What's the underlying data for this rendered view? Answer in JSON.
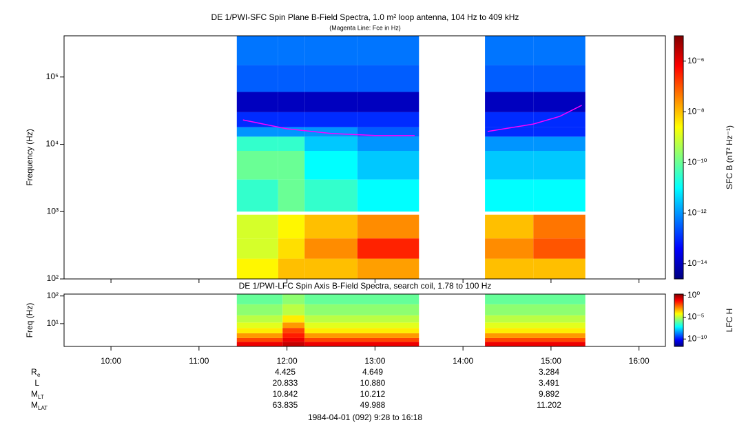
{
  "chart_data": [
    {
      "type": "heatmap",
      "title": "DE 1/PWI-SFC  Spin Plane B-Field Spectra, 1.0 m² loop antenna, 104 Hz to 409 kHz",
      "subtitle": "(Magenta Line: Fce in Hz)",
      "y_label": "Frequency (Hz)",
      "colorbar_label": "SFC B (nT² Hz⁻¹)",
      "xlim": [
        9.467,
        16.3
      ],
      "xticks": [
        10,
        11,
        12,
        13,
        14,
        15,
        16
      ],
      "ylim": [
        100,
        409000
      ],
      "y_log": true,
      "yticks": [
        {
          "value": 100,
          "label": "10²"
        },
        {
          "value": 1000,
          "label": "10³"
        },
        {
          "value": 10000,
          "label": "10⁴"
        },
        {
          "value": 100000,
          "label": "10⁵"
        }
      ],
      "zlim": [
        2.5e-15,
        1e-05
      ],
      "zticks": [
        {
          "value": 1e-14,
          "label": "10⁻¹⁴"
        },
        {
          "value": 1e-12,
          "label": "10⁻¹²"
        },
        {
          "value": 1e-10,
          "label": "10⁻¹⁰"
        },
        {
          "value": 1e-08,
          "label": "10⁻⁸"
        },
        {
          "value": 1e-06,
          "label": "10⁻⁶"
        }
      ],
      "x_edges": [
        11.43,
        11.9,
        12.2,
        12.8,
        13.5,
        14.25,
        14.8,
        15.39
      ],
      "y_edges": [
        100,
        200,
        400,
        900,
        1000,
        3000,
        8000,
        13000,
        18000,
        30000,
        60000,
        150000,
        409000
      ],
      "z": [
        [
          3e-09,
          1e-08,
          1e-08,
          2e-08,
          null,
          1e-08,
          1e-08
        ],
        [
          1e-09,
          5e-09,
          3e-08,
          3e-07,
          null,
          3e-08,
          1e-07
        ],
        [
          1e-09,
          3e-09,
          1e-08,
          3e-08,
          null,
          1e-08,
          5e-08
        ],
        [
          null,
          null,
          null,
          null,
          null,
          null,
          null
        ],
        [
          3e-11,
          1e-10,
          3e-11,
          1e-11,
          null,
          1e-11,
          1e-11
        ],
        [
          1e-10,
          1e-10,
          1e-11,
          3e-12,
          null,
          3e-12,
          3e-12
        ],
        [
          3e-11,
          3e-11,
          3e-12,
          1e-12,
          null,
          1e-12,
          1e-12
        ],
        [
          1e-12,
          1e-12,
          1e-12,
          3e-13,
          null,
          1e-13,
          1e-13
        ],
        [
          1e-13,
          1e-13,
          1e-13,
          1e-13,
          null,
          1e-13,
          1e-13
        ],
        [
          1e-14,
          1e-14,
          1e-14,
          1e-14,
          null,
          1e-14,
          1e-14
        ],
        [
          3e-13,
          3e-13,
          3e-13,
          3e-13,
          null,
          3e-13,
          3e-13
        ],
        [
          5e-13,
          5e-13,
          5e-13,
          5e-13,
          null,
          5e-13,
          5e-13
        ]
      ],
      "overlay": {
        "color": "#ff00ff",
        "x": [
          11.5,
          12.0,
          12.5,
          13.0,
          13.45,
          13.9,
          14.28,
          14.8,
          15.1,
          15.35
        ],
        "values": [
          23000,
          17000,
          14500,
          13500,
          13500,
          null,
          15500,
          20000,
          26000,
          38000
        ]
      }
    },
    {
      "type": "heatmap",
      "title": "DE 1/PWI-LFC  Spin Axis B-Field Spectra, search coil, 1.78 to 100 Hz",
      "y_label": "Freq (Hz)",
      "colorbar_label": "LFC H",
      "xlim": [
        9.467,
        16.3
      ],
      "xticks": [
        {
          "value": 10,
          "label": "10:00"
        },
        {
          "value": 11,
          "label": "11:00"
        },
        {
          "value": 12,
          "label": "12:00"
        },
        {
          "value": 13,
          "label": "13:00"
        },
        {
          "value": 14,
          "label": "14:00"
        },
        {
          "value": 15,
          "label": "15:00"
        },
        {
          "value": 16,
          "label": "16:00"
        }
      ],
      "ylim": [
        1.5,
        117
      ],
      "y_log": true,
      "yticks": [
        {
          "value": 10,
          "label": "10¹"
        },
        {
          "value": 100,
          "label": "10²"
        }
      ],
      "zlim": [
        2e-12,
        2
      ],
      "zticks": [
        {
          "value": 1e-10,
          "label": "10⁻¹⁰"
        },
        {
          "value": 1e-05,
          "label": "10⁻⁵"
        },
        {
          "value": 1,
          "label": "10⁰"
        }
      ],
      "x_edges": [
        11.43,
        11.95,
        12.2,
        13.5,
        14.25,
        15.39
      ],
      "y_edges": [
        1.5,
        2.2,
        3,
        4.5,
        7,
        11,
        20,
        50,
        117
      ],
      "z": [
        [
          0.1,
          0.3,
          0.1,
          null,
          0.1
        ],
        [
          0.01,
          0.1,
          0.01,
          null,
          0.01
        ],
        [
          0.001,
          0.03,
          0.001,
          null,
          0.001
        ],
        [
          0.0001,
          0.01,
          0.0001,
          null,
          0.0001
        ],
        [
          3e-05,
          0.001,
          3e-05,
          null,
          3e-05
        ],
        [
          1e-05,
          0.0001,
          1e-05,
          null,
          1e-05
        ],
        [
          3e-06,
          1e-05,
          3e-06,
          null,
          3e-06
        ],
        [
          1e-06,
          3e-06,
          1e-06,
          null,
          1e-06
        ]
      ]
    }
  ],
  "ephemeris": {
    "rows": [
      {
        "label": "R",
        "sub": "e",
        "values": [
          "4.425",
          "4.649",
          "3.284"
        ]
      },
      {
        "label": "L",
        "values": [
          "20.833",
          "10.880",
          "3.491"
        ]
      },
      {
        "label": "M",
        "sub": "LT",
        "values": [
          "10.842",
          "10.212",
          "9.892"
        ]
      },
      {
        "label": "M",
        "sub": "LAT",
        "values": [
          "63.835",
          "49.988",
          "11.202"
        ]
      }
    ]
  },
  "time_range": "1984-04-01 (092) 9:28 to 16:18"
}
